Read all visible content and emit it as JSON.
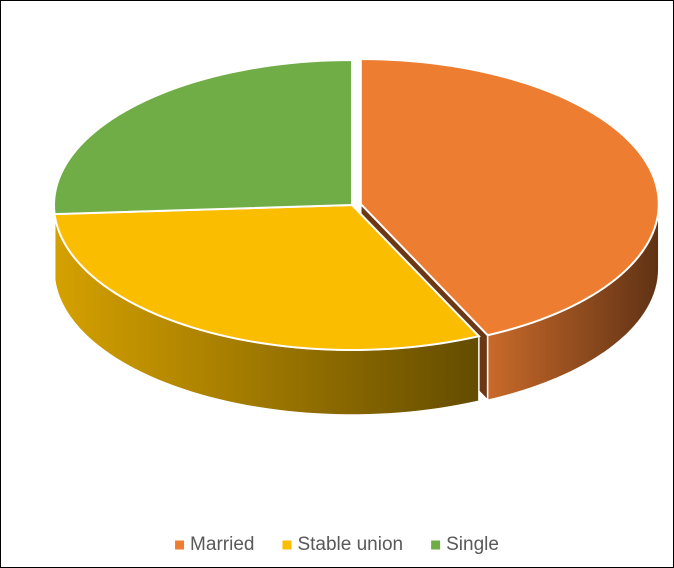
{
  "chart_data": {
    "type": "pie3d",
    "categories": [
      "Married",
      "Stable union",
      "Single"
    ],
    "values": [
      43,
      31,
      26
    ],
    "colors": [
      "#ed7d31",
      "#fbbd00",
      "#70ad47"
    ],
    "legend": "bottom"
  }
}
